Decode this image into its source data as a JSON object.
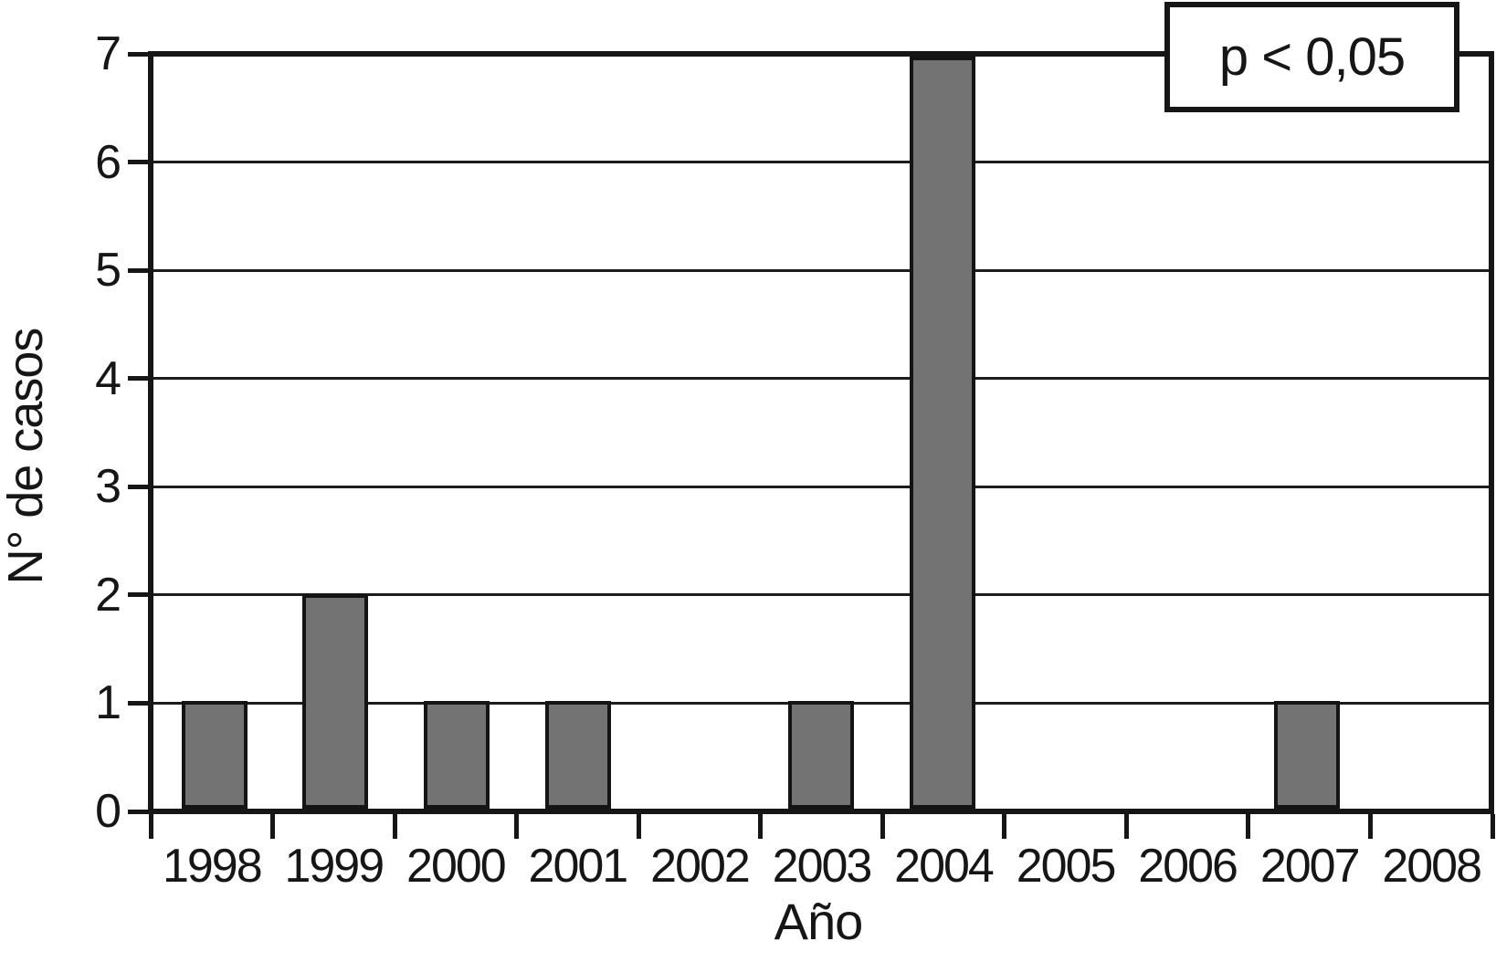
{
  "chart_data": {
    "type": "bar",
    "categories": [
      "1998",
      "1999",
      "2000",
      "2001",
      "2002",
      "2003",
      "2004",
      "2005",
      "2006",
      "2007",
      "2008"
    ],
    "values": [
      1,
      2,
      1,
      1,
      0,
      1,
      7,
      0,
      0,
      1,
      0
    ],
    "title": "",
    "xlabel": "Año",
    "ylabel": "N° de casos",
    "ylim": [
      0,
      7
    ],
    "yticks": [
      0,
      1,
      2,
      3,
      4,
      5,
      6,
      7
    ],
    "grid": true,
    "legend": "none",
    "annotation": "p < 0,05",
    "colors": {
      "bar_fill": "#737373",
      "bar_border": "#141414",
      "line": "#161616",
      "background": "#ffffff"
    }
  }
}
